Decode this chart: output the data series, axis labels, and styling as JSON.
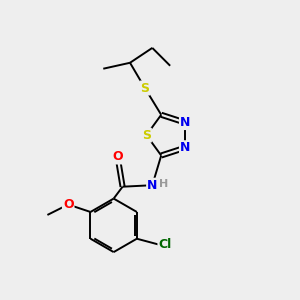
{
  "bg_color": "#eeeeee",
  "bond_color": "#000000",
  "atom_colors": {
    "S": "#cccc00",
    "N": "#0000ee",
    "O": "#ff0000",
    "Cl": "#006600",
    "H": "#999999"
  },
  "bond_width": 1.4,
  "dbo": 0.08,
  "figsize": [
    3.0,
    3.0
  ],
  "dpi": 100
}
